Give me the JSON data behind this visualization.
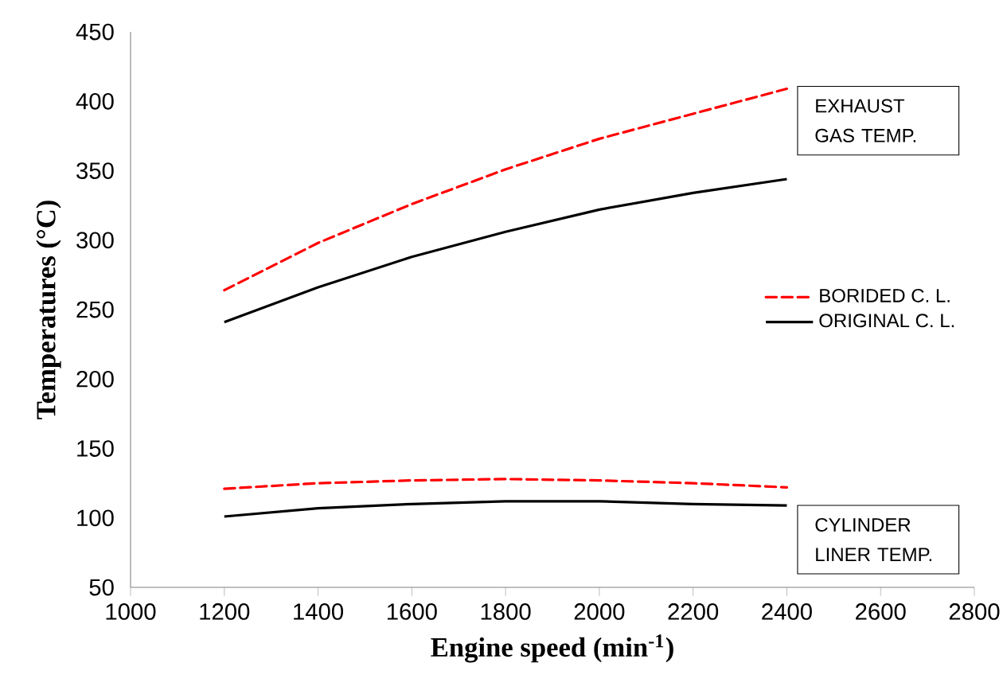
{
  "chart_data": {
    "type": "line",
    "xlabel": "Engine speed (min$^{-1}$)",
    "ylabel": "Temperatures (°C)",
    "x": [
      1200,
      1400,
      1600,
      1800,
      2000,
      2200,
      2400
    ],
    "series": [
      {
        "name": "BORIDED C. L.",
        "color": "#ff0000",
        "line_style": "dashed",
        "values": [
          264,
          298,
          326,
          351,
          373,
          391,
          409
        ]
      },
      {
        "name": "ORIGINAL C. L.",
        "color": "#000000",
        "line_style": "solid",
        "values": [
          241,
          266,
          288,
          306,
          322,
          334,
          344
        ]
      },
      {
        "color": "#ff0000",
        "line_style": "dashed",
        "values": [
          121,
          125,
          127,
          128,
          127,
          125,
          122
        ]
      },
      {
        "color": "#000000",
        "line_style": "solid",
        "values": [
          101,
          107,
          110,
          112,
          112,
          110,
          109
        ]
      }
    ],
    "xlim": [
      1000,
      2800
    ],
    "xticks": [
      1000,
      1200,
      1400,
      1600,
      1800,
      2000,
      2200,
      2400,
      2600,
      2800
    ],
    "ylim": [
      50,
      450
    ],
    "yticks": [
      50,
      100,
      150,
      200,
      250,
      300,
      350,
      400,
      450
    ],
    "grid": false,
    "legend": "right",
    "marker": "none",
    "annotations": [
      "EXHAUST GAS TEMP.",
      "CYLINDER LINER TEMP."
    ]
  }
}
